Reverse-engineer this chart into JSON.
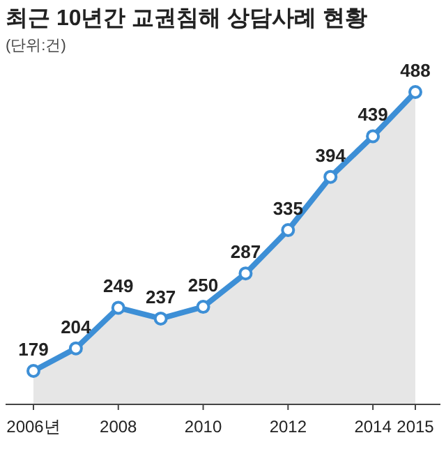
{
  "chart_data": {
    "type": "area",
    "title": "최근 10년간 교권침해 상담사례 현황",
    "subtitle": "(단위:건)",
    "categories": [
      "2006년",
      null,
      "2008",
      null,
      "2010",
      null,
      "2012",
      null,
      "2014",
      "2015"
    ],
    "series": [
      {
        "color": "#3d8fd6",
        "values": [
          179,
          204,
          249,
          237,
          250,
          287,
          335,
          394,
          439,
          488
        ]
      }
    ],
    "data_labels": true,
    "marker": "circle",
    "grid": false
  }
}
